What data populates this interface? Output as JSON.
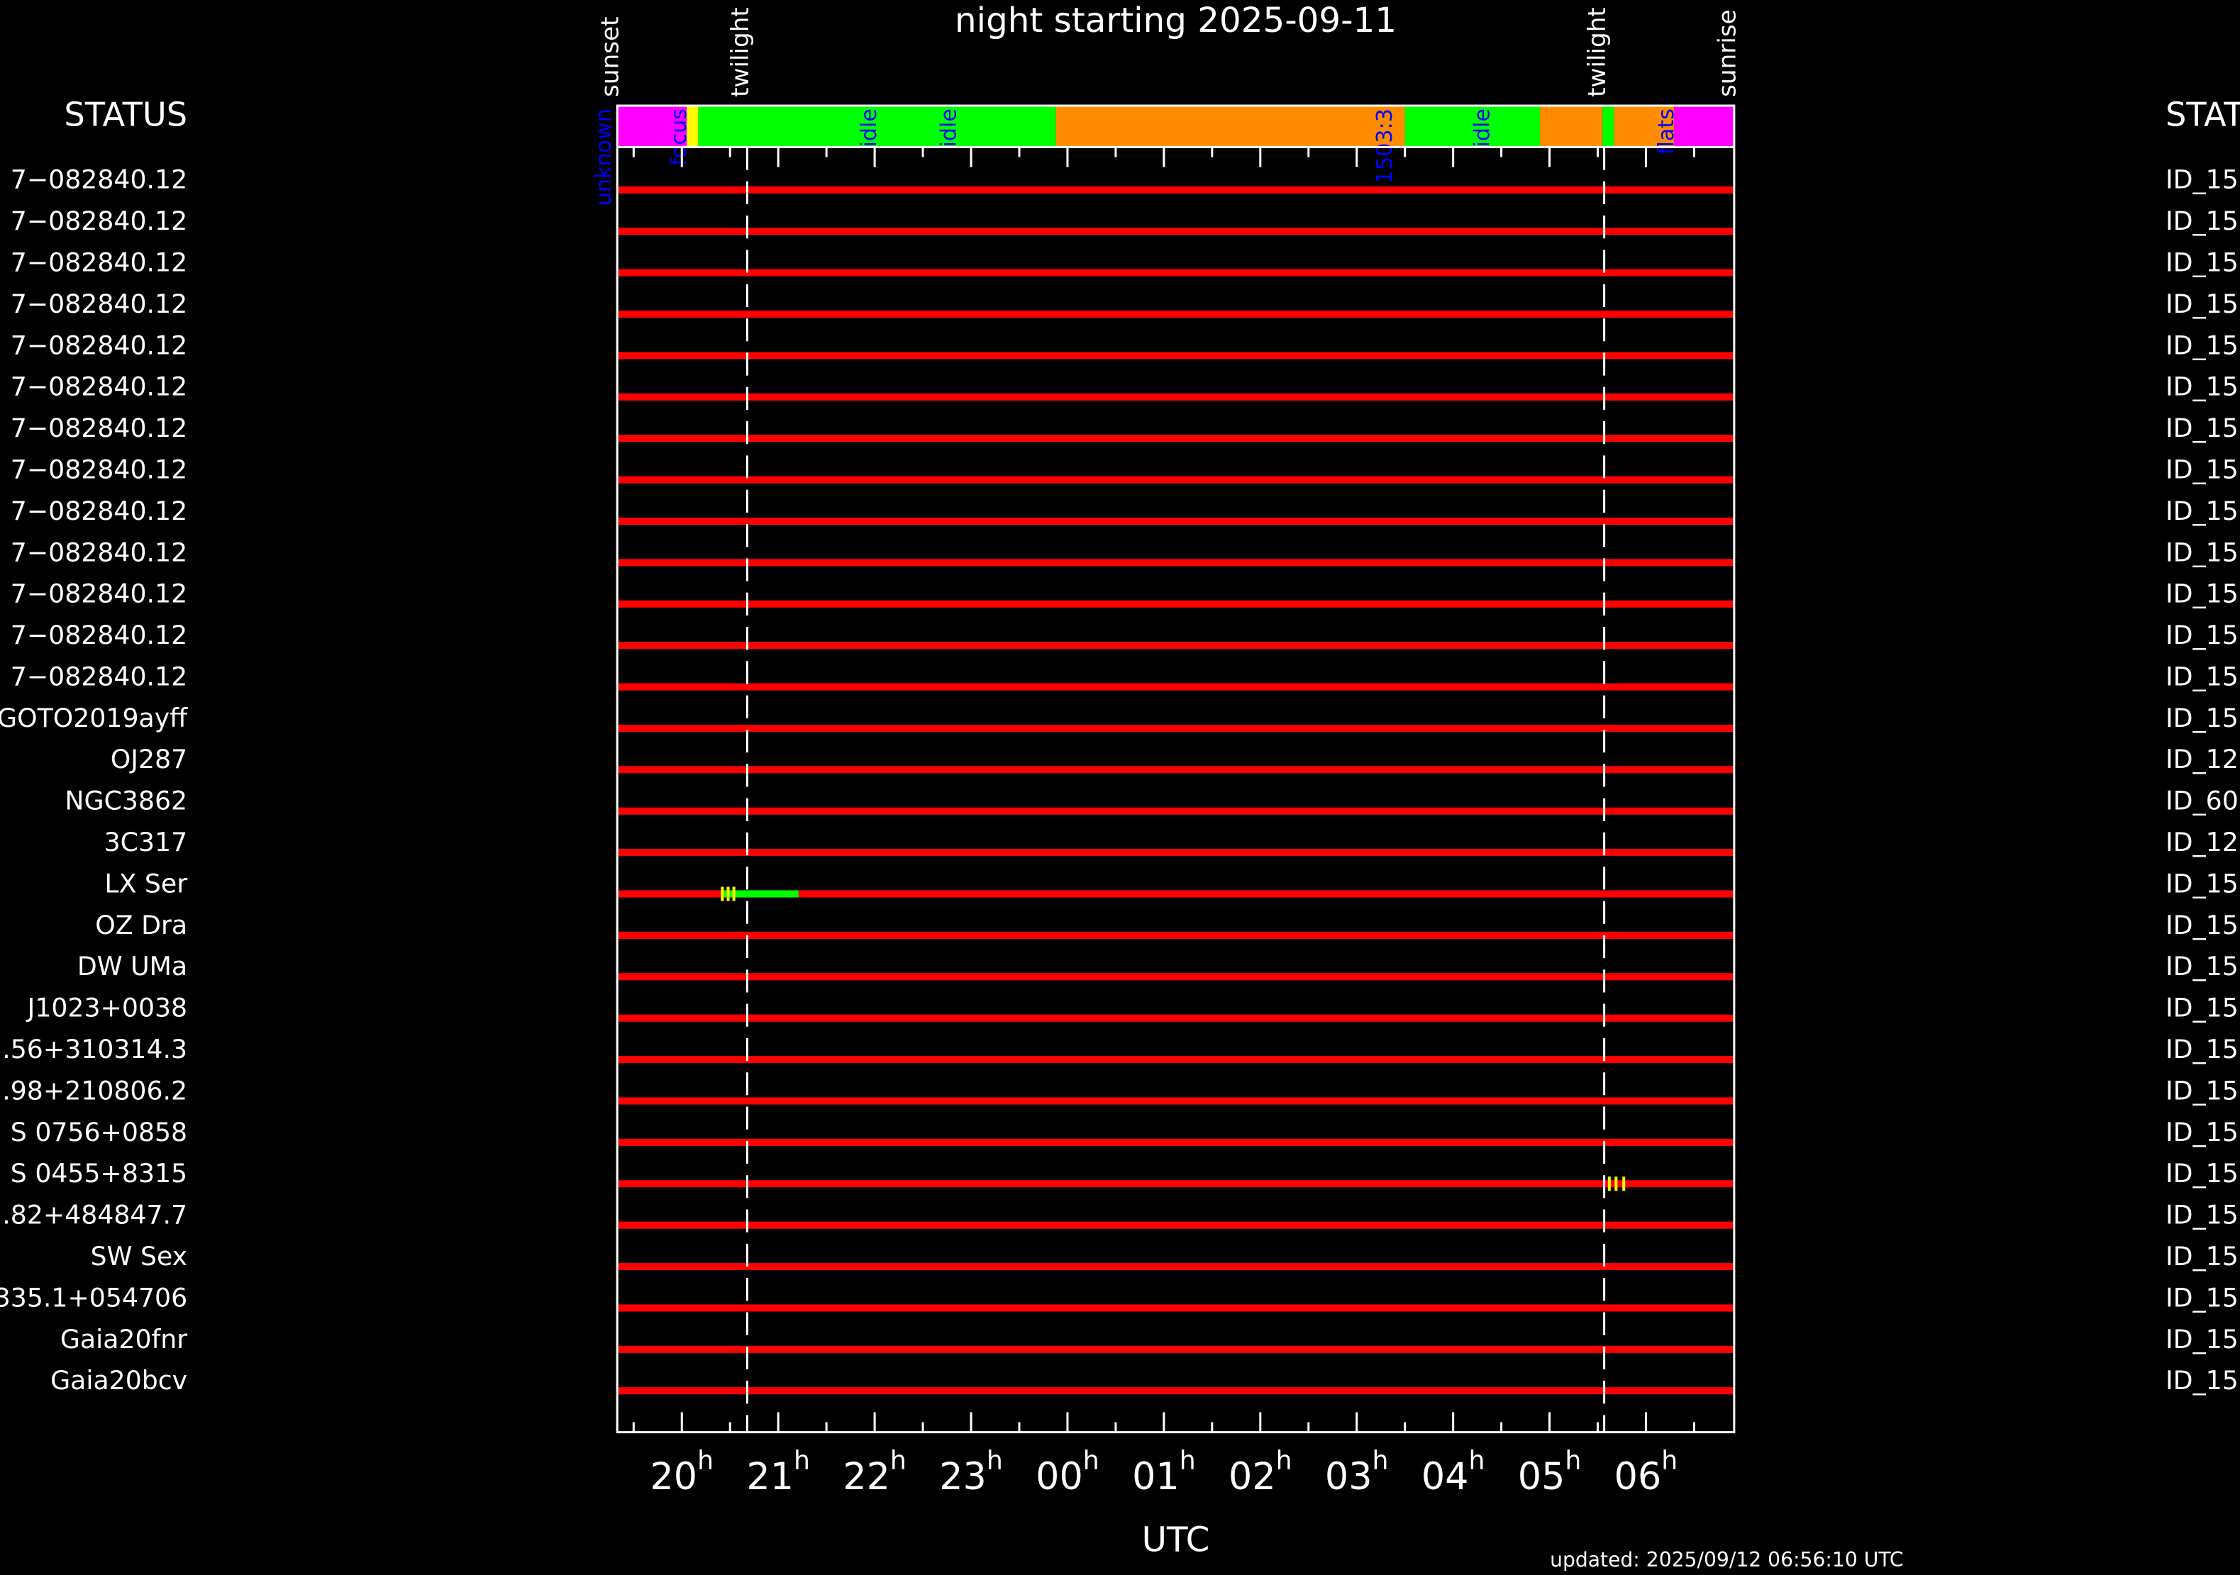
{
  "chart_data": {
    "type": "timeline",
    "title": "night starting 2025-09-11",
    "xlabel": "UTC",
    "footer": "updated: 2025/09/12 06:56:10 UTC",
    "left_header": "STATUS",
    "right_header": "STAT",
    "xlim": [
      19.33,
      30.915
    ],
    "xticks": [
      {
        "value": 20,
        "label": "20"
      },
      {
        "value": 21,
        "label": "21"
      },
      {
        "value": 22,
        "label": "22"
      },
      {
        "value": 23,
        "label": "23"
      },
      {
        "value": 24,
        "label": "00"
      },
      {
        "value": 25,
        "label": "01"
      },
      {
        "value": 26,
        "label": "02"
      },
      {
        "value": 27,
        "label": "03"
      },
      {
        "value": 28,
        "label": "04"
      },
      {
        "value": 29,
        "label": "05"
      },
      {
        "value": 30,
        "label": "06"
      }
    ],
    "xtick_unit": "h",
    "xminorticks": [
      19.5,
      20.5,
      21.5,
      22.5,
      23.5,
      24.5,
      25.5,
      26.5,
      27.5,
      28.5,
      29.5,
      30.5
    ],
    "events": [
      {
        "name": "sunset",
        "x": 19.33
      },
      {
        "name": "twilight",
        "x": 20.678,
        "dashed": true
      },
      {
        "name": "twilight",
        "x": 29.567,
        "dashed": true
      },
      {
        "name": "sunrise",
        "x": 30.915
      }
    ],
    "status_segments": [
      {
        "start": 19.33,
        "end": 20.05,
        "color": "#ff00ff"
      },
      {
        "start": 20.05,
        "end": 20.17,
        "color": "#ffff00"
      },
      {
        "start": 20.17,
        "end": 23.88,
        "color": "#00ff00"
      },
      {
        "start": 23.88,
        "end": 27.5,
        "color": "#ff8c00"
      },
      {
        "start": 27.5,
        "end": 28.9,
        "color": "#00ff00"
      },
      {
        "start": 28.9,
        "end": 29.55,
        "color": "#ff8c00"
      },
      {
        "start": 29.55,
        "end": 29.67,
        "color": "#00ff00"
      },
      {
        "start": 29.67,
        "end": 30.29,
        "color": "#ff8c00"
      },
      {
        "start": 30.29,
        "end": 30.915,
        "color": "#ff00ff"
      }
    ],
    "status_labels": [
      {
        "text": "unknown",
        "x": 19.2
      },
      {
        "text": "focus",
        "x": 19.98
      },
      {
        "text": "idle",
        "x": 21.95
      },
      {
        "text": "idle",
        "x": 22.78
      },
      {
        "text": "1503:3",
        "x": 27.3
      },
      {
        "text": "idle",
        "x": 28.31
      },
      {
        "text": "flats",
        "x": 30.22
      }
    ],
    "row_color": "#ff0000",
    "rows": [
      {
        "target": "7−082840.12",
        "id": "ID_15"
      },
      {
        "target": "7−082840.12",
        "id": "ID_15"
      },
      {
        "target": "7−082840.12",
        "id": "ID_15"
      },
      {
        "target": "7−082840.12",
        "id": "ID_15"
      },
      {
        "target": "7−082840.12",
        "id": "ID_15"
      },
      {
        "target": "7−082840.12",
        "id": "ID_15"
      },
      {
        "target": "7−082840.12",
        "id": "ID_15"
      },
      {
        "target": "7−082840.12",
        "id": "ID_15"
      },
      {
        "target": "7−082840.12",
        "id": "ID_15"
      },
      {
        "target": "7−082840.12",
        "id": "ID_15"
      },
      {
        "target": "7−082840.12",
        "id": "ID_15"
      },
      {
        "target": "7−082840.12",
        "id": "ID_15"
      },
      {
        "target": "7−082840.12",
        "id": "ID_15"
      },
      {
        "target": "GOTO2019ayff",
        "id": "ID_15"
      },
      {
        "target": "OJ287",
        "id": "ID_12"
      },
      {
        "target": "NGC3862",
        "id": "ID_60"
      },
      {
        "target": "3C317",
        "id": "ID_12"
      },
      {
        "target": "LX Ser",
        "id": "ID_15",
        "observed": [
          {
            "start": 20.41,
            "end": 21.21,
            "color": "#00ff00"
          }
        ],
        "exposures": [
          20.42,
          20.48,
          20.54
        ]
      },
      {
        "target": "OZ Dra",
        "id": "ID_15"
      },
      {
        "target": "DW UMa",
        "id": "ID_15"
      },
      {
        "target": "J1023+0038",
        "id": "ID_15"
      },
      {
        "target": ".56+310314.3",
        "id": "ID_15"
      },
      {
        "target": ".98+210806.2",
        "id": "ID_15"
      },
      {
        "target": "S 0756+0858",
        "id": "ID_15"
      },
      {
        "target": "S 0455+8315",
        "id": "ID_15",
        "exposures": [
          29.62,
          29.69,
          29.77
        ]
      },
      {
        "target": ".82+484847.7",
        "id": "ID_15"
      },
      {
        "target": "SW Sex",
        "id": "ID_15"
      },
      {
        "target": "335.1+054706",
        "id": "ID_15"
      },
      {
        "target": "Gaia20fnr",
        "id": "ID_15"
      },
      {
        "target": "Gaia20bcv",
        "id": "ID_15"
      }
    ]
  }
}
